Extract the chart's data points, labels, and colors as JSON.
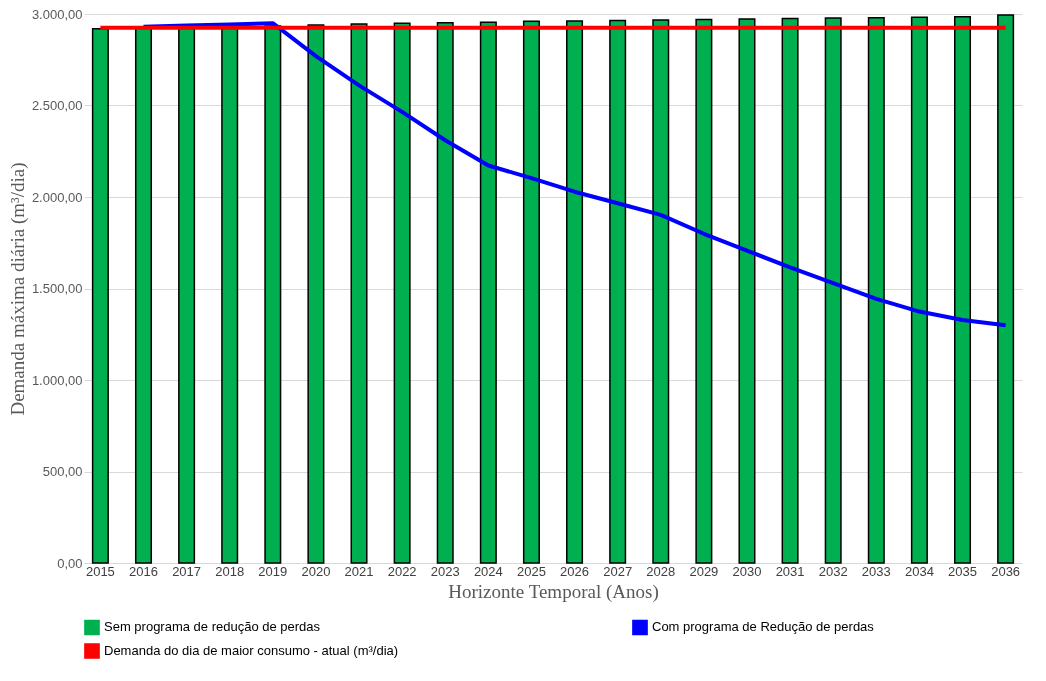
{
  "chart_data": {
    "type": "bar",
    "xlabel": "Horizonte Temporal (Anos)",
    "ylabel": "Demanda máxima diária (m³/dia)",
    "categories": [
      "2015",
      "2016",
      "2017",
      "2018",
      "2019",
      "2020",
      "2021",
      "2022",
      "2023",
      "2024",
      "2025",
      "2026",
      "2027",
      "2028",
      "2029",
      "2030",
      "2031",
      "2032",
      "2033",
      "2034",
      "2035",
      "2036"
    ],
    "series": [
      {
        "name": "Sem programa de redução de perdas",
        "color": "#00b050",
        "values": [
          2920,
          2925,
          2930,
          2932,
          2935,
          2940,
          2945,
          2950,
          2952,
          2955,
          2960,
          2962,
          2965,
          2967,
          2970,
          2972,
          2975,
          2978,
          2980,
          2982,
          2985,
          2995
        ]
      },
      {
        "name": "Com programa de Redução de perdas",
        "type": "line",
        "color": "#0000ff",
        "values": [
          null,
          2930,
          2937,
          2943,
          2950,
          2770,
          2610,
          2465,
          2310,
          2172,
          2103,
          2029,
          1966,
          1902,
          1799,
          1707,
          1615,
          1529,
          1443,
          1374,
          1328,
          1299
        ]
      },
      {
        "name": "Demanda do dia de maior consumo - atual (m³/dia)",
        "type": "line",
        "color": "#ff0000",
        "values": [
          2925,
          2925,
          2925,
          2925,
          2925,
          2925,
          2925,
          2925,
          2925,
          2925,
          2925,
          2925,
          2925,
          2925,
          2925,
          2925,
          2925,
          2925,
          2925,
          2925,
          2925,
          2925
        ]
      }
    ],
    "ylim": [
      0,
      3000
    ],
    "yticks": [
      {
        "value": 0,
        "label": "0,00"
      },
      {
        "value": 500,
        "label": "500,00"
      },
      {
        "value": 1000,
        "label": "1.000,00"
      },
      {
        "value": 1500,
        "label": "1.500,00"
      },
      {
        "value": 2000,
        "label": "2.000,00"
      },
      {
        "value": 2500,
        "label": "2.500,00"
      },
      {
        "value": 3000,
        "label": "3.000,00"
      }
    ],
    "grid": "y",
    "legend": "bottom",
    "marker": "none",
    "line_style": "solid"
  }
}
